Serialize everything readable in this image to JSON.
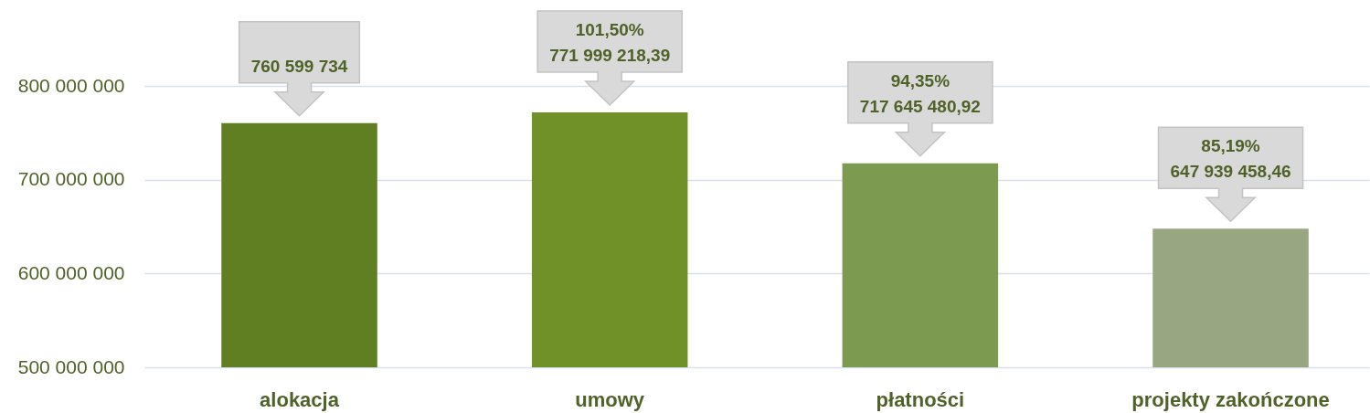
{
  "chart_data": {
    "type": "bar",
    "categories": [
      "alokacja",
      "umowy",
      "płatności",
      "projekty zakończone"
    ],
    "values": [
      760599734,
      771999218.39,
      717645480.92,
      647939458.46
    ],
    "colors": [
      "#5f7f22",
      "#6f9128",
      "#7c9b50",
      "#98a681"
    ],
    "value_labels": [
      "760 599 734",
      "101,50%\n771 999 218,39",
      "94,35%\n717 645 480,92",
      "85,19%\n647 939 458,46"
    ],
    "ylim": [
      500000000,
      890000000
    ],
    "yticks": [
      {
        "value": 500000000,
        "label": "500 000 000"
      },
      {
        "value": 600000000,
        "label": "600 000 000"
      },
      {
        "value": 700000000,
        "label": "700 000 000"
      },
      {
        "value": 800000000,
        "label": "800 000 000"
      }
    ],
    "grid": "y"
  }
}
